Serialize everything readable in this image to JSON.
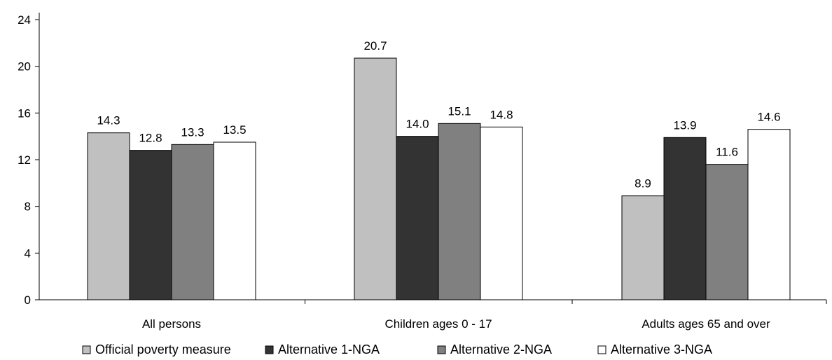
{
  "chart_data": {
    "type": "bar",
    "title": "",
    "xlabel": "",
    "ylabel": "",
    "ylim": [
      0,
      24
    ],
    "yticks": [
      0,
      4,
      8,
      12,
      16,
      20,
      24
    ],
    "grid": false,
    "legend_position": "bottom",
    "categories": [
      "All persons",
      "Children ages 0 - 17",
      "Adults ages 65 and over"
    ],
    "series": [
      {
        "name": "Official poverty measure",
        "values": [
          14.3,
          20.7,
          8.9
        ],
        "color": "#c0c0c0"
      },
      {
        "name": "Alternative 1-NGA",
        "values": [
          12.8,
          14.0,
          13.9
        ],
        "color": "#333333"
      },
      {
        "name": "Alternative 2-NGA",
        "values": [
          13.3,
          15.1,
          11.6
        ],
        "color": "#808080"
      },
      {
        "name": "Alternative 3-NGA",
        "values": [
          13.5,
          14.8,
          14.6
        ],
        "color": "#ffffff"
      }
    ],
    "data_labels": [
      [
        "14.3",
        "20.7",
        "8.9"
      ],
      [
        "12.8",
        "14.0",
        "13.9"
      ],
      [
        "13.3",
        "15.1",
        "11.6"
      ],
      [
        "13.5",
        "14.8",
        "14.6"
      ]
    ]
  }
}
